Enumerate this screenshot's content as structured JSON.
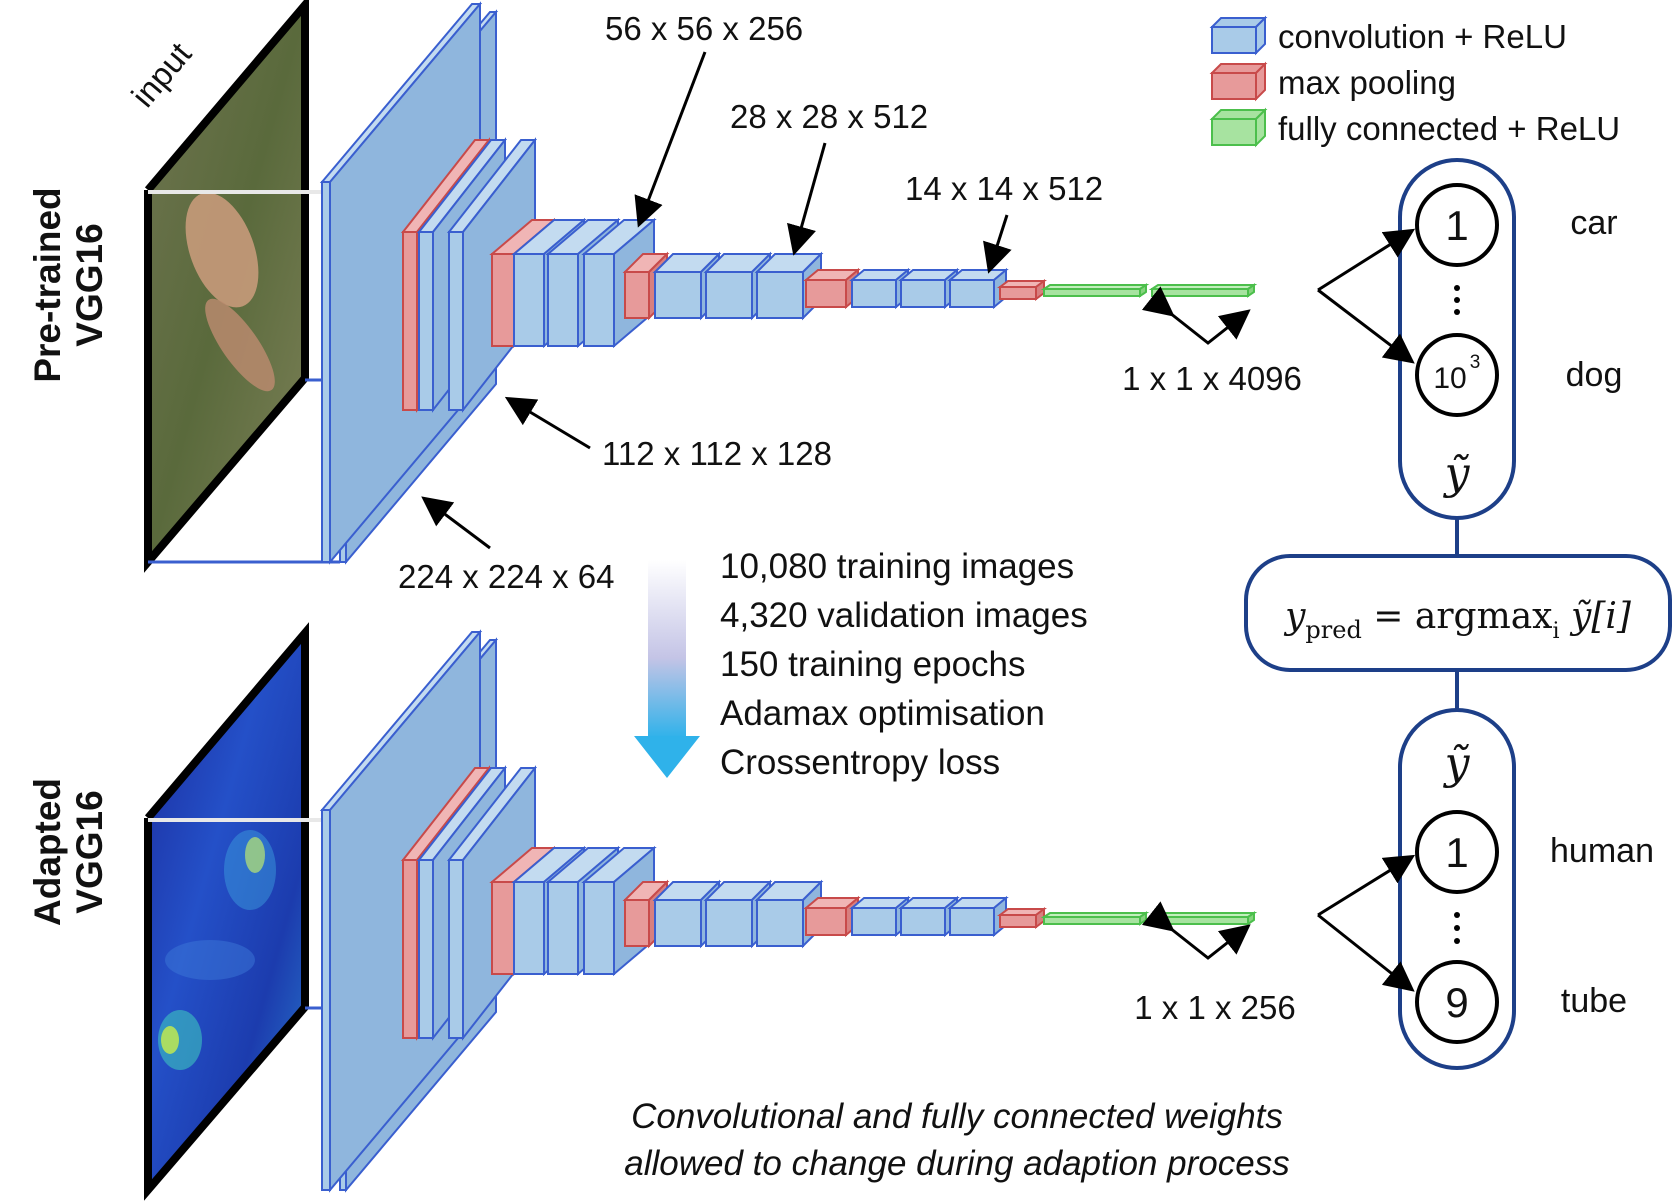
{
  "legend": [
    {
      "label": "convolution + ReLU",
      "color": "#a9cbe8",
      "edge": "#3a5fcf"
    },
    {
      "label": "max pooling",
      "color": "#e79a9a",
      "edge": "#c84a4a"
    },
    {
      "label": "fully connected + ReLU",
      "color": "#a7e3a0",
      "edge": "#4cbf4c"
    }
  ],
  "input_label": "input",
  "top": {
    "row_label_1": "Pre-trained",
    "row_label_2": "VGG16",
    "dims": {
      "d224": "224 x 224 x 64",
      "d112": "112 x 112 x 128",
      "d56": "56 x 56 x 256",
      "d28": "28 x 28 x 512",
      "d14": "14 x 14 x 512",
      "fc": "1 x 1 x 4096"
    },
    "outputs": {
      "first_node": "1",
      "last_node_base": "10",
      "last_node_exp": "3",
      "first_class": "car",
      "last_class": "dog"
    }
  },
  "bottom": {
    "row_label_1": "Adapted",
    "row_label_2": "VGG16",
    "dims": {
      "fc": "1 x 1 x 256"
    },
    "outputs": {
      "first_node": "1",
      "last_node": "9",
      "first_class": "human",
      "last_class": "tube"
    }
  },
  "training": [
    "10,080 training images",
    "4,320 validation images",
    "150 training epochs",
    "Adamax optimisation",
    "Crossentropy loss"
  ],
  "formula": {
    "y": "y",
    "pred": "pred",
    "rest": " = argmax",
    "sub_i": "i",
    "tail": "[i]",
    "ytilde": "ỹ"
  },
  "caption": [
    "Convolutional and fully connected weights",
    "allowed to change during adaption process"
  ]
}
